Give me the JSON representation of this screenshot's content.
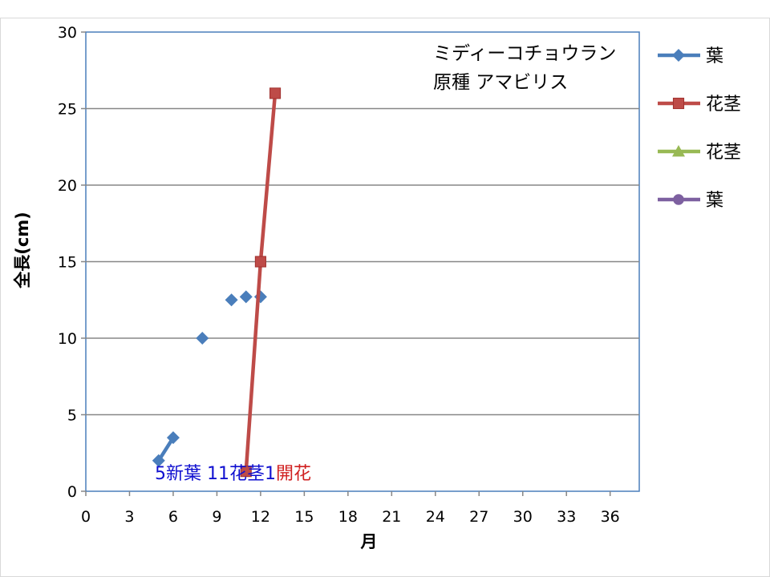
{
  "chart_data": {
    "type": "line",
    "xlabel": "月",
    "ylabel": "全長(cm)",
    "xlim": [
      0,
      38
    ],
    "ylim": [
      0,
      30
    ],
    "xticks": [
      0,
      3,
      6,
      9,
      12,
      15,
      18,
      21,
      24,
      27,
      30,
      33,
      36
    ],
    "yticks": [
      0,
      5,
      10,
      15,
      20,
      25,
      30
    ],
    "grid": "horizontal",
    "legend_position": "right",
    "annotation_lines": [
      "ミディーコチョウラン",
      "原種 アマビリス"
    ],
    "bottom_note": [
      {
        "text": "5新葉 11花茎1",
        "color": "#1010d0"
      },
      {
        "text": "開花",
        "color": "#d02020"
      }
    ],
    "series": [
      {
        "name": "葉",
        "color": "#4a7ebb",
        "marker": "diamond",
        "points": [
          [
            5,
            2
          ],
          [
            6,
            3.5
          ],
          [
            8,
            10
          ],
          [
            10,
            12.5
          ],
          [
            11,
            12.7
          ],
          [
            12,
            12.7
          ]
        ],
        "connected": [
          true,
          false,
          false,
          false,
          false
        ]
      },
      {
        "name": "花茎",
        "color": "#be4b48",
        "marker": "square",
        "points": [
          [
            11,
            1.3
          ],
          [
            12,
            15
          ],
          [
            13,
            26
          ]
        ],
        "connected": [
          true,
          true
        ]
      },
      {
        "name": "花茎",
        "color": "#98b954",
        "marker": "triangle",
        "points": [],
        "connected": []
      },
      {
        "name": "葉",
        "color": "#7d60a0",
        "marker": "circle",
        "points": [],
        "connected": []
      }
    ]
  }
}
